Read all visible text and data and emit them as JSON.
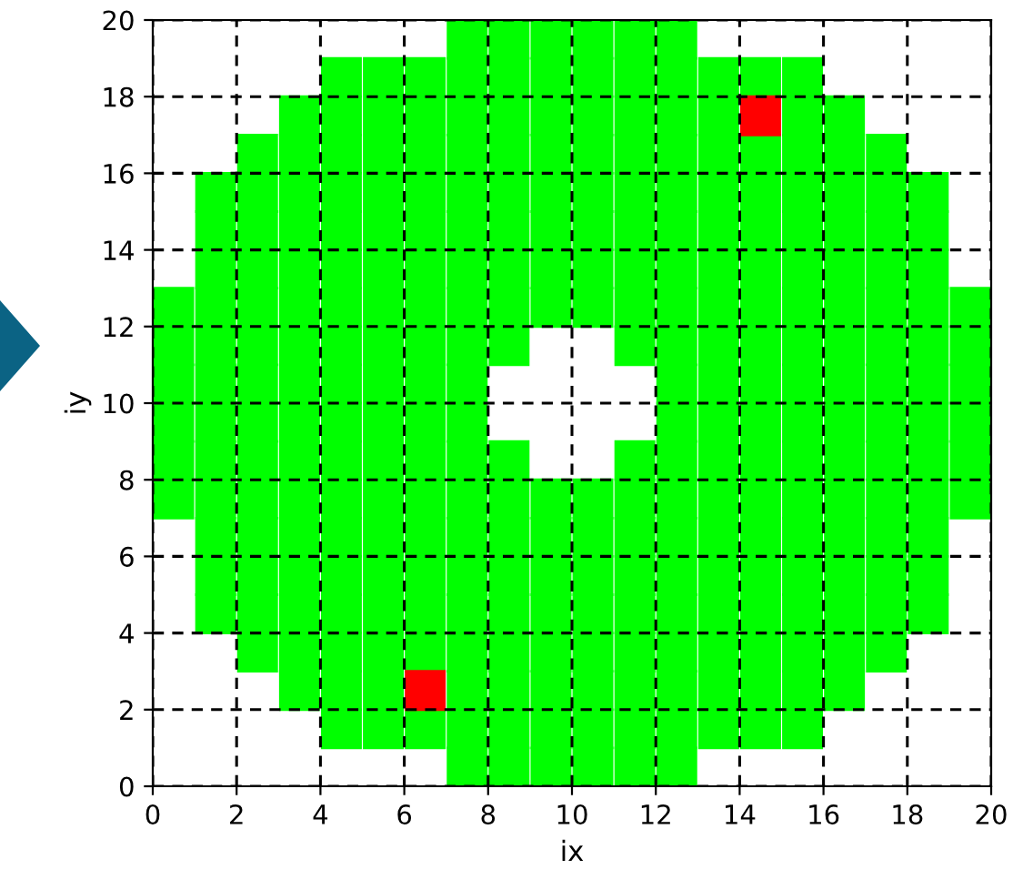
{
  "chart_data": {
    "type": "scatter",
    "xlabel": "ix",
    "ylabel": "iy",
    "xlim": [
      0,
      20
    ],
    "ylim": [
      0,
      20
    ],
    "xticks": [
      0,
      2,
      4,
      6,
      8,
      10,
      12,
      14,
      16,
      18,
      20
    ],
    "yticks": [
      0,
      2,
      4,
      6,
      8,
      10,
      12,
      14,
      16,
      18,
      20
    ],
    "grid": true,
    "line_style": "dashed",
    "marker": "square",
    "series": [
      {
        "color": "#00ff00",
        "x": [
          7.5,
          8.5,
          9.5,
          10.5,
          11.5,
          12.5
        ],
        "values": [
          19.5,
          19.5,
          19.5,
          19.5,
          19.5,
          19.5
        ]
      },
      {
        "color": "#00ff00",
        "x": [
          4.5,
          5.5,
          6.5,
          7.5,
          8.5,
          9.5,
          10.5,
          11.5,
          12.5,
          13.5,
          14.5,
          15.5
        ],
        "values": [
          18.5,
          18.5,
          18.5,
          18.5,
          18.5,
          18.5,
          18.5,
          18.5,
          18.5,
          18.5,
          18.5,
          18.5
        ]
      },
      {
        "color": "#00ff00",
        "x": [
          3.5,
          4.5,
          5.5,
          6.5,
          7.5,
          8.5,
          9.5,
          10.5,
          11.5,
          12.5,
          13.5,
          15.5,
          16.5
        ],
        "values": [
          17.5,
          17.5,
          17.5,
          17.5,
          17.5,
          17.5,
          17.5,
          17.5,
          17.5,
          17.5,
          17.5,
          17.5,
          17.5
        ]
      },
      {
        "color": "#00ff00",
        "x": [
          2.5,
          3.5,
          4.5,
          5.5,
          6.5,
          7.5,
          8.5,
          9.5,
          10.5,
          11.5,
          12.5,
          13.5,
          14.5,
          15.5,
          16.5,
          17.5
        ],
        "values": [
          16.5,
          16.5,
          16.5,
          16.5,
          16.5,
          16.5,
          16.5,
          16.5,
          16.5,
          16.5,
          16.5,
          16.5,
          16.5,
          16.5,
          16.5,
          16.5
        ]
      },
      {
        "color": "#00ff00",
        "x": [
          1.5,
          2.5,
          3.5,
          4.5,
          5.5,
          6.5,
          7.5,
          8.5,
          9.5,
          10.5,
          11.5,
          12.5,
          13.5,
          14.5,
          15.5,
          16.5,
          17.5,
          18.5
        ],
        "values": [
          15.5,
          15.5,
          15.5,
          15.5,
          15.5,
          15.5,
          15.5,
          15.5,
          15.5,
          15.5,
          15.5,
          15.5,
          15.5,
          15.5,
          15.5,
          15.5,
          15.5,
          15.5
        ]
      },
      {
        "color": "#00ff00",
        "x": [
          1.5,
          2.5,
          3.5,
          4.5,
          5.5,
          6.5,
          7.5,
          8.5,
          9.5,
          10.5,
          11.5,
          12.5,
          13.5,
          14.5,
          15.5,
          16.5,
          17.5,
          18.5
        ],
        "values": [
          14.5,
          14.5,
          14.5,
          14.5,
          14.5,
          14.5,
          14.5,
          14.5,
          14.5,
          14.5,
          14.5,
          14.5,
          14.5,
          14.5,
          14.5,
          14.5,
          14.5,
          14.5
        ]
      },
      {
        "color": "#00ff00",
        "x": [
          1.5,
          2.5,
          3.5,
          4.5,
          5.5,
          6.5,
          7.5,
          8.5,
          9.5,
          10.5,
          11.5,
          12.5,
          13.5,
          14.5,
          15.5,
          16.5,
          17.5,
          18.5
        ],
        "values": [
          13.5,
          13.5,
          13.5,
          13.5,
          13.5,
          13.5,
          13.5,
          13.5,
          13.5,
          13.5,
          13.5,
          13.5,
          13.5,
          13.5,
          13.5,
          13.5,
          13.5,
          13.5
        ]
      },
      {
        "color": "#00ff00",
        "x": [
          0.5,
          1.5,
          2.5,
          3.5,
          4.5,
          5.5,
          6.5,
          7.5,
          8.5,
          9.5,
          10.5,
          11.5,
          12.5,
          13.5,
          14.5,
          15.5,
          16.5,
          17.5,
          18.5,
          19.5
        ],
        "values": [
          12.5,
          12.5,
          12.5,
          12.5,
          12.5,
          12.5,
          12.5,
          12.5,
          12.5,
          12.5,
          12.5,
          12.5,
          12.5,
          12.5,
          12.5,
          12.5,
          12.5,
          12.5,
          12.5,
          12.5
        ]
      },
      {
        "color": "#00ff00",
        "x": [
          0.5,
          1.5,
          2.5,
          3.5,
          4.5,
          5.5,
          6.5,
          7.5,
          8.5,
          11.5,
          12.5,
          13.5,
          14.5,
          15.5,
          16.5,
          17.5,
          18.5,
          19.5
        ],
        "values": [
          11.5,
          11.5,
          11.5,
          11.5,
          11.5,
          11.5,
          11.5,
          11.5,
          11.5,
          11.5,
          11.5,
          11.5,
          11.5,
          11.5,
          11.5,
          11.5,
          11.5,
          11.5
        ]
      },
      {
        "color": "#00ff00",
        "x": [
          0.5,
          1.5,
          2.5,
          3.5,
          4.5,
          5.5,
          6.5,
          7.5,
          12.5,
          13.5,
          14.5,
          15.5,
          16.5,
          17.5,
          18.5,
          19.5
        ],
        "values": [
          10.5,
          10.5,
          10.5,
          10.5,
          10.5,
          10.5,
          10.5,
          10.5,
          10.5,
          10.5,
          10.5,
          10.5,
          10.5,
          10.5,
          10.5,
          10.5
        ]
      },
      {
        "color": "#00ff00",
        "x": [
          0.5,
          1.5,
          2.5,
          3.5,
          4.5,
          5.5,
          6.5,
          7.5,
          12.5,
          13.5,
          14.5,
          15.5,
          16.5,
          17.5,
          18.5,
          19.5
        ],
        "values": [
          9.5,
          9.5,
          9.5,
          9.5,
          9.5,
          9.5,
          9.5,
          9.5,
          9.5,
          9.5,
          9.5,
          9.5,
          9.5,
          9.5,
          9.5,
          9.5
        ]
      },
      {
        "color": "#00ff00",
        "x": [
          0.5,
          1.5,
          2.5,
          3.5,
          4.5,
          5.5,
          6.5,
          7.5,
          8.5,
          11.5,
          12.5,
          13.5,
          14.5,
          15.5,
          16.5,
          17.5,
          18.5,
          19.5
        ],
        "values": [
          8.5,
          8.5,
          8.5,
          8.5,
          8.5,
          8.5,
          8.5,
          8.5,
          8.5,
          8.5,
          8.5,
          8.5,
          8.5,
          8.5,
          8.5,
          8.5,
          8.5,
          8.5
        ]
      },
      {
        "color": "#00ff00",
        "x": [
          0.5,
          1.5,
          2.5,
          3.5,
          4.5,
          5.5,
          6.5,
          7.5,
          8.5,
          9.5,
          10.5,
          11.5,
          12.5,
          13.5,
          14.5,
          15.5,
          16.5,
          17.5,
          18.5,
          19.5
        ],
        "values": [
          7.5,
          7.5,
          7.5,
          7.5,
          7.5,
          7.5,
          7.5,
          7.5,
          7.5,
          7.5,
          7.5,
          7.5,
          7.5,
          7.5,
          7.5,
          7.5,
          7.5,
          7.5,
          7.5,
          7.5
        ]
      },
      {
        "color": "#00ff00",
        "x": [
          1.5,
          2.5,
          3.5,
          4.5,
          5.5,
          6.5,
          7.5,
          8.5,
          9.5,
          10.5,
          11.5,
          12.5,
          13.5,
          14.5,
          15.5,
          16.5,
          17.5,
          18.5
        ],
        "values": [
          6.5,
          6.5,
          6.5,
          6.5,
          6.5,
          6.5,
          6.5,
          6.5,
          6.5,
          6.5,
          6.5,
          6.5,
          6.5,
          6.5,
          6.5,
          6.5,
          6.5,
          6.5
        ]
      },
      {
        "color": "#00ff00",
        "x": [
          1.5,
          2.5,
          3.5,
          4.5,
          5.5,
          6.5,
          7.5,
          8.5,
          9.5,
          10.5,
          11.5,
          12.5,
          13.5,
          14.5,
          15.5,
          16.5,
          17.5,
          18.5
        ],
        "values": [
          5.5,
          5.5,
          5.5,
          5.5,
          5.5,
          5.5,
          5.5,
          5.5,
          5.5,
          5.5,
          5.5,
          5.5,
          5.5,
          5.5,
          5.5,
          5.5,
          5.5,
          5.5
        ]
      },
      {
        "color": "#00ff00",
        "x": [
          1.5,
          2.5,
          3.5,
          4.5,
          5.5,
          6.5,
          7.5,
          8.5,
          9.5,
          10.5,
          11.5,
          12.5,
          13.5,
          14.5,
          15.5,
          16.5,
          17.5,
          18.5
        ],
        "values": [
          4.5,
          4.5,
          4.5,
          4.5,
          4.5,
          4.5,
          4.5,
          4.5,
          4.5,
          4.5,
          4.5,
          4.5,
          4.5,
          4.5,
          4.5,
          4.5,
          4.5,
          4.5
        ]
      },
      {
        "color": "#00ff00",
        "x": [
          2.5,
          3.5,
          4.5,
          5.5,
          6.5,
          7.5,
          8.5,
          9.5,
          10.5,
          11.5,
          12.5,
          13.5,
          14.5,
          15.5,
          16.5,
          17.5
        ],
        "values": [
          3.5,
          3.5,
          3.5,
          3.5,
          3.5,
          3.5,
          3.5,
          3.5,
          3.5,
          3.5,
          3.5,
          3.5,
          3.5,
          3.5,
          3.5,
          3.5
        ]
      },
      {
        "color": "#00ff00",
        "x": [
          3.5,
          4.5,
          5.5,
          7.5,
          8.5,
          9.5,
          10.5,
          11.5,
          12.5,
          13.5,
          14.5,
          15.5,
          16.5
        ],
        "values": [
          2.5,
          2.5,
          2.5,
          2.5,
          2.5,
          2.5,
          2.5,
          2.5,
          2.5,
          2.5,
          2.5,
          2.5,
          2.5
        ]
      },
      {
        "color": "#00ff00",
        "x": [
          4.5,
          5.5,
          6.5,
          7.5,
          8.5,
          9.5,
          10.5,
          11.5,
          12.5,
          13.5,
          14.5,
          15.5
        ],
        "values": [
          1.5,
          1.5,
          1.5,
          1.5,
          1.5,
          1.5,
          1.5,
          1.5,
          1.5,
          1.5,
          1.5,
          1.5
        ]
      },
      {
        "color": "#00ff00",
        "x": [
          7.5,
          8.5,
          9.5,
          10.5,
          11.5,
          12.5
        ],
        "values": [
          0.5,
          0.5,
          0.5,
          0.5,
          0.5,
          0.5
        ]
      },
      {
        "color": "#ff0000",
        "x": [
          14.5,
          6.5
        ],
        "values": [
          17.5,
          2.5
        ]
      }
    ]
  }
}
